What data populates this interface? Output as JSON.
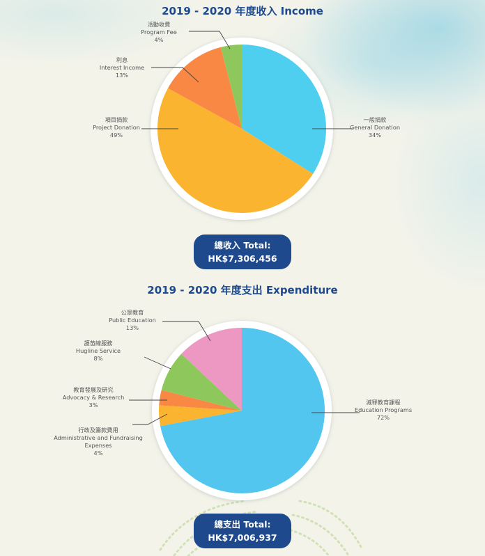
{
  "chart_data": [
    {
      "type": "pie",
      "title": "2019 - 2020 年度收入 Income",
      "slices": [
        {
          "zh": "一般捐款",
          "en": "General Donation",
          "pct_label": "34%",
          "value": 34,
          "color": "#4fcff0"
        },
        {
          "zh": "項目捐款",
          "en": "Project Donation",
          "pct_label": "49%",
          "value": 49,
          "color": "#fbb430"
        },
        {
          "zh": "利息",
          "en": "Interest Income",
          "pct_label": "13%",
          "value": 13,
          "color": "#f98844"
        },
        {
          "zh": "活動收費",
          "en": "Program Fee",
          "pct_label": "4%",
          "value": 4,
          "color": "#8ec85d"
        }
      ],
      "total_label": "總收入 Total:",
      "total_value": "HK$7,306,456"
    },
    {
      "type": "pie",
      "title": "2019 - 2020 年度支出 Expenditure",
      "slices": [
        {
          "zh": "滅罪教育課程",
          "en": "Education Programs",
          "pct_label": "72%",
          "value": 72,
          "color": "#53c6f0"
        },
        {
          "zh": "行政及籌款費用",
          "en": "Administrative and Fundraising Expenses",
          "pct_label": "4%",
          "value": 4,
          "color": "#fbb430"
        },
        {
          "zh": "教育發展及研究",
          "en": "Advocacy & Research",
          "pct_label": "3%",
          "value": 3,
          "color": "#f98844"
        },
        {
          "zh": "護苗線服務",
          "en": "Hugline Service",
          "pct_label": "8%",
          "value": 8,
          "color": "#8ec85d"
        },
        {
          "zh": "公眾教育",
          "en": "Public Education",
          "pct_label": "13%",
          "value": 13,
          "color": "#ec98c3"
        }
      ],
      "total_label": "總支出 Total:",
      "total_value": "HK$7,006,937"
    }
  ]
}
